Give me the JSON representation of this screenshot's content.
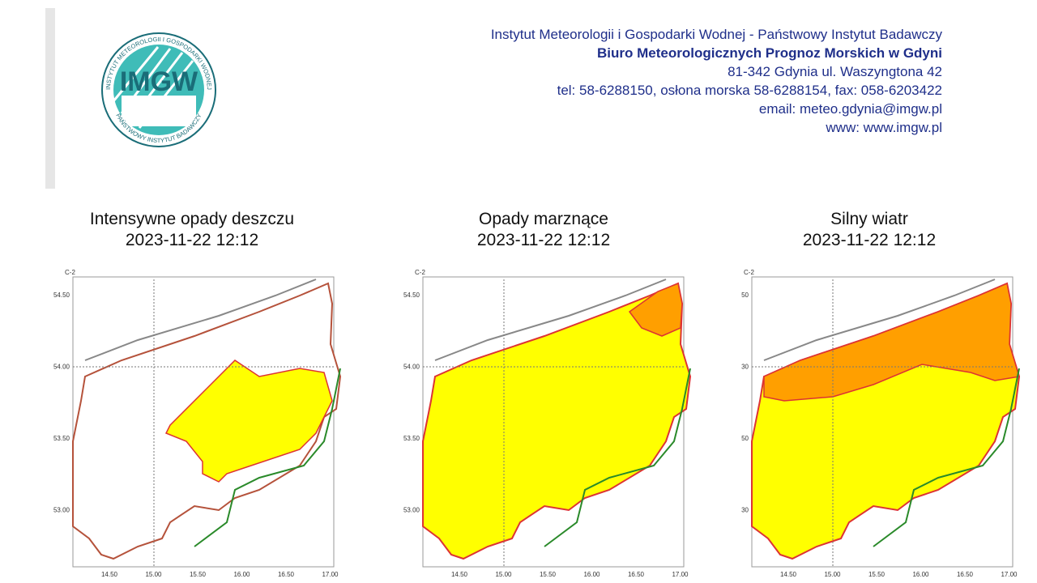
{
  "header": {
    "lines": [
      "Instytut Meteorologii i Gospodarki Wodnej - Państwowy Instytut Badawczy",
      "Biuro Meteorologicznych Prognoz Morskich w Gdyni",
      "81-342 Gdynia ul. Waszyngtona 42",
      "tel: 58-6288150, osłona morska 58-6288154, fax: 058-6203422",
      "email: meteo.gdynia@imgw.pl",
      "www: www.imgw.pl"
    ]
  },
  "logo": {
    "letters": "IMGW",
    "ring_top": "INSTYTUT METEOROLOGII I GOSPODARKI WODNEJ",
    "ring_bottom": "PAŃSTWOWY INSTYTUT BADAWCZY"
  },
  "maps": [
    {
      "title": "Intensywne opady deszczu",
      "date": "2023-11-22 12:12",
      "corner": "C-2",
      "y_labels": [
        "54.50",
        "54.00",
        "53.50",
        "53.00"
      ],
      "x_labels": [
        "14.50",
        "15.00",
        "15.50",
        "16.00",
        "16.50",
        "17.00"
      ]
    },
    {
      "title": "Opady marznące",
      "date": "2023-11-22 12:12",
      "corner": "C-2",
      "y_labels": [
        "54.50",
        "54.00",
        "53.50",
        "53.00"
      ],
      "x_labels": [
        "14.50",
        "15.00",
        "15.50",
        "16.00",
        "16.50",
        "17.00"
      ]
    },
    {
      "title": "Silny wiatr",
      "date": "2023-11-22 12:12",
      "corner": "C-2",
      "y_labels": [
        "50",
        "30",
        "50",
        "30"
      ],
      "x_labels": [
        "14.50",
        "15.00",
        "15.50",
        "16.00",
        "16.50",
        "17.00"
      ]
    }
  ]
}
